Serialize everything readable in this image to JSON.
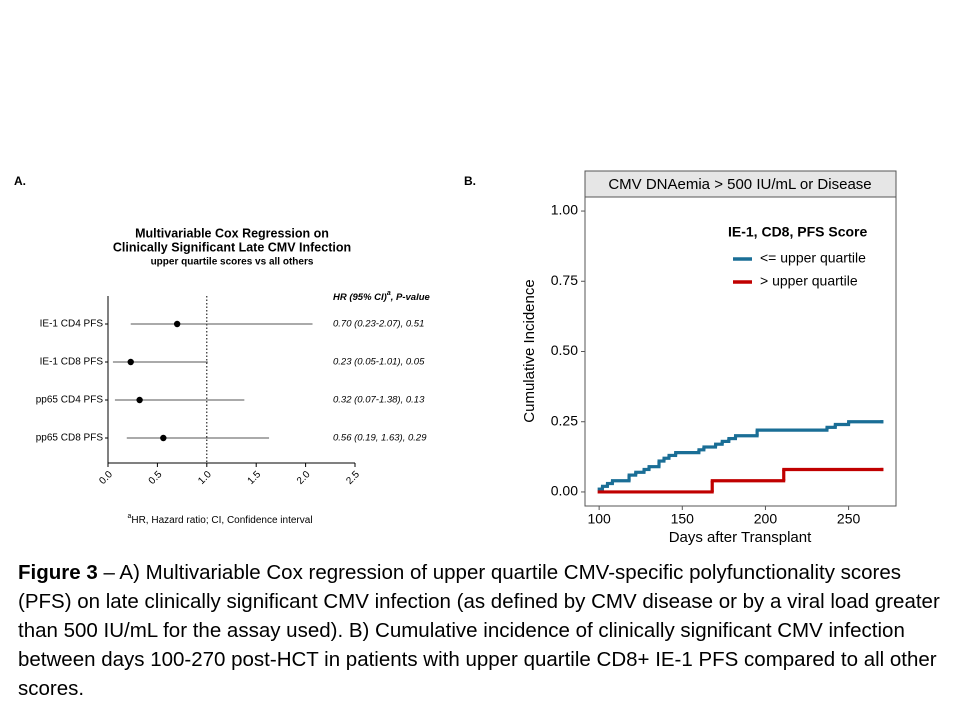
{
  "chart_data": [
    {
      "type": "forest",
      "panel_label": "A.",
      "title": [
        "Multivariable Cox Regression on",
        "Clinically Significant Late CMV Infection"
      ],
      "subtitle": "upper quartile scores vs all others",
      "column_header": {
        "text": "HR (95% CI)",
        "superscript": "a",
        "suffix": ", P-value"
      },
      "categories": [
        "IE-1 CD4 PFS",
        "IE-1 CD8 PFS",
        "pp65 CD4 PFS",
        "pp65 CD8 PFS"
      ],
      "values": [
        0.7,
        0.23,
        0.32,
        0.56
      ],
      "ci_lower": [
        0.23,
        0.05,
        0.07,
        0.19
      ],
      "ci_upper": [
        2.07,
        1.01,
        1.38,
        1.63
      ],
      "p_values": [
        0.51,
        0.05,
        0.13,
        0.29
      ],
      "value_labels": [
        "0.70 (0.23-2.07), 0.51",
        "0.23 (0.05-1.01), 0.05",
        "0.32 (0.07-1.38), 0.13",
        "0.56 (0.19, 1.63), 0.29"
      ],
      "reference_line": 1,
      "xlim": [
        0,
        2.5
      ],
      "xticks": [
        {
          "value": 0,
          "label": "0.0"
        },
        0.5,
        {
          "value": 1,
          "label": "1.0"
        },
        1.5,
        {
          "value": 2,
          "label": "2.0"
        },
        2.5
      ],
      "footnote": {
        "superscript": "a",
        "text": "HR, Hazard ratio; CI, Confidence interval"
      },
      "color": "#000000"
    },
    {
      "type": "step",
      "panel_label": "B.",
      "title": "CMV DNAemia > 500 IU/mL or Disease",
      "xlabel": "Days after Transplant",
      "ylabel": "Cumulative Incidence",
      "legend_title": "IE-1, CD8, PFS Score",
      "series": [
        {
          "name": "<= upper quartile",
          "color": "#1a6e96",
          "x": [
            100,
            102,
            105,
            108,
            118,
            122,
            127,
            130,
            136,
            139,
            142,
            146,
            160,
            163,
            170,
            174,
            178,
            182,
            195,
            237,
            242,
            250,
            270
          ],
          "values": [
            0.01,
            0.02,
            0.03,
            0.04,
            0.06,
            0.07,
            0.08,
            0.09,
            0.11,
            0.12,
            0.13,
            0.14,
            0.15,
            0.16,
            0.17,
            0.18,
            0.19,
            0.2,
            0.22,
            0.23,
            0.24,
            0.25,
            0.25
          ]
        },
        {
          "name": "> upper quartile",
          "color": "#c00000",
          "x": [
            100,
            168,
            211,
            270
          ],
          "values": [
            0,
            0.04,
            0.08,
            0.08
          ]
        }
      ],
      "xlim": [
        91.5,
        278.5
      ],
      "xticks": [
        100,
        150,
        200,
        250
      ],
      "ylim": [
        -0.05,
        1.05
      ],
      "yticks": [
        {
          "value": 0,
          "label": "0.00"
        },
        0.25,
        {
          "value": 0.5,
          "label": "0.50"
        },
        0.75,
        {
          "value": 1,
          "label": "1.00"
        }
      ]
    }
  ],
  "caption": {
    "label": "Figure 3",
    "text": "– A) Multivariable Cox regression of upper quartile CMV-specific polyfunctionality scores (PFS) on late clinically significant CMV infection (as defined by CMV disease or by a viral load greater than 500 IU/mL for the assay used). B) Cumulative incidence of clinically significant CMV infection between days 100-270 post-HCT in patients with upper quartile CD8+ IE-1 PFS compared to all other scores."
  }
}
